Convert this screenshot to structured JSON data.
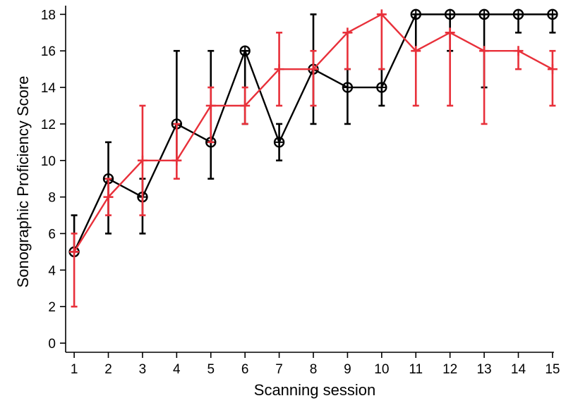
{
  "chart_data": {
    "type": "line",
    "xlabel": "Scanning session",
    "ylabel": "Sonographic Proficiency Score",
    "x": [
      1,
      2,
      3,
      4,
      5,
      6,
      7,
      8,
      9,
      10,
      11,
      12,
      13,
      14,
      15
    ],
    "xlim": [
      0.75,
      15.25
    ],
    "ylim": [
      -0.5,
      18.4
    ],
    "yticks": [
      0,
      2,
      4,
      6,
      8,
      10,
      12,
      14,
      16,
      18
    ],
    "grid": false,
    "series": [
      {
        "color": "#000000",
        "marker": "circle-cross",
        "values": [
          5,
          9,
          8,
          12,
          11,
          16,
          11,
          15,
          14,
          14,
          18,
          18,
          18,
          18,
          18
        ],
        "err_low": [
          5,
          6,
          6,
          10,
          9,
          12,
          10,
          12,
          12,
          13,
          16,
          16,
          14,
          17,
          17
        ],
        "err_high": [
          7,
          11,
          9,
          16,
          16,
          16,
          12,
          18,
          15,
          15,
          18,
          18,
          18,
          18,
          18
        ]
      },
      {
        "color": "#e8303a",
        "marker": "plus",
        "values": [
          5,
          8,
          10,
          10,
          13,
          13,
          15,
          15,
          17,
          18,
          16,
          17,
          16,
          16,
          15
        ],
        "err_low": [
          2,
          7,
          7,
          9,
          11,
          12,
          13,
          13,
          15,
          15,
          13,
          13,
          12,
          15,
          13
        ],
        "err_high": [
          6,
          9,
          13,
          12,
          14,
          14,
          17,
          16,
          17,
          18,
          16,
          17,
          16,
          16,
          16
        ]
      }
    ]
  }
}
